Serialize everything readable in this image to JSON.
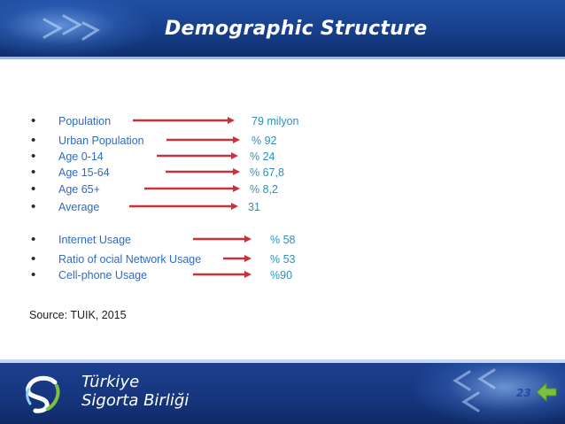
{
  "header": {
    "title": "Demographic Structure"
  },
  "group1": [
    {
      "label": "Population",
      "value": "79 milyon"
    },
    {
      "label": "Urban Population",
      "value": "% 92"
    },
    {
      "label": "Age 0-14",
      "value": "% 24"
    },
    {
      "label": "Age 15-64",
      "value": "% 67,8"
    },
    {
      "label": "Age 65+",
      "value": "% 8,2"
    },
    {
      "label": "Average",
      "value": "31"
    }
  ],
  "group2": [
    {
      "label": "Internet Usage",
      "value": "% 58"
    },
    {
      "label": "Ratio of ocial Network Usage",
      "value": "% 53"
    },
    {
      "label": "Cell-phone Usage",
      "value": "%90"
    }
  ],
  "source": "Source: TUIK, 2015",
  "footer": {
    "brand_line1": "Türkiye",
    "brand_line2": "Sigorta Birliği",
    "page_number": "23"
  },
  "colors": {
    "header_bg": "#1f4fa3",
    "label_text": "#2f6bbf",
    "value_text": "#2f8fb8",
    "arrow": "#c8323a",
    "page_number": "#1f4fa3",
    "back_arrow": "#7ac142"
  },
  "icons": {
    "back": "back-arrow-icon",
    "logo": "swirl-logo-icon"
  }
}
